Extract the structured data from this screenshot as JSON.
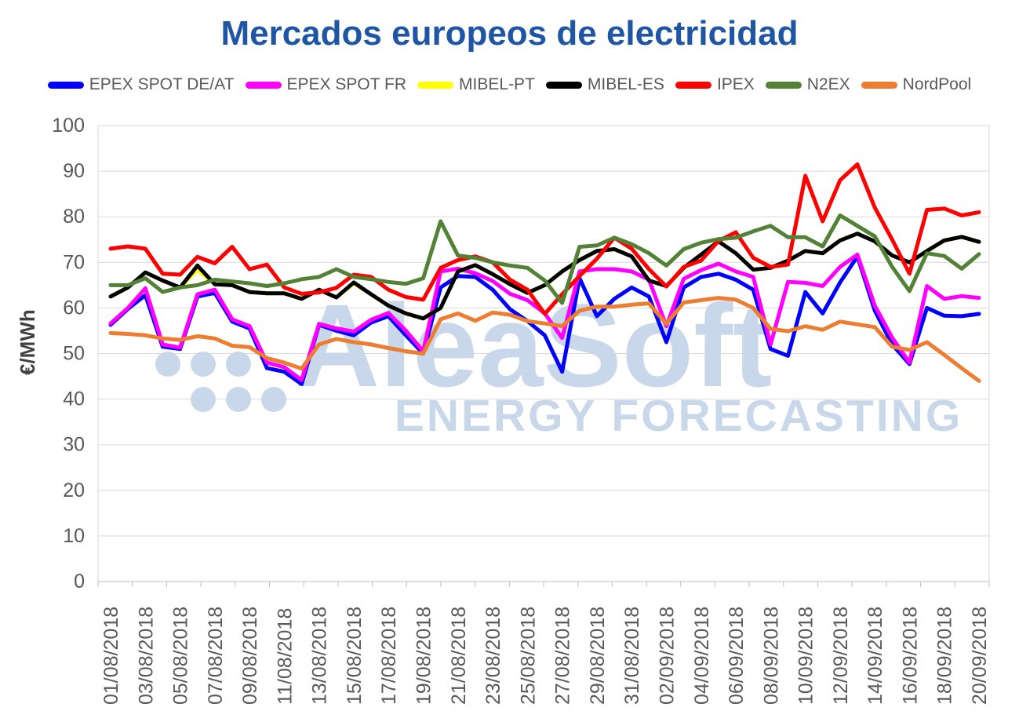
{
  "title": "Mercados europeos de electricidad",
  "watermark": {
    "brand": "AleaSoft",
    "tagline": "ENERGY FORECASTING",
    "color": "#C9D7EB"
  },
  "colors": {
    "title": "#1E56A5",
    "axis_text": "#595959",
    "y_label_text": "#404040",
    "gridline": "#D9D9D9",
    "axis_line": "#BFBFBF"
  },
  "chart_data": {
    "type": "line",
    "title": "Mercados europeos de electricidad",
    "xlabel": "",
    "ylabel": "€/MWh",
    "ylim": [
      0,
      100
    ],
    "y_ticks": [
      0,
      10,
      20,
      30,
      40,
      50,
      60,
      70,
      80,
      90,
      100
    ],
    "grid": true,
    "legend_position": "top",
    "x_labels": [
      "01/08/2018",
      "03/08/2018",
      "05/08/2018",
      "07/08/2018",
      "09/08/2018",
      "11/08/2018",
      "13/08/2018",
      "15/08/2018",
      "17/08/2018",
      "19/08/2018",
      "21/08/2018",
      "23/08/2018",
      "25/08/2018",
      "27/08/2018",
      "29/08/2018",
      "31/08/2018",
      "02/09/2018",
      "04/09/2018",
      "06/09/2018",
      "08/09/2018",
      "10/09/2018",
      "12/09/2018",
      "14/09/2018",
      "16/09/2018",
      "18/09/2018",
      "20/09/2018"
    ],
    "series": [
      {
        "name": "EPEX SPOT DE/AT",
        "color": "#0000FF",
        "values": [
          56.3,
          59.8,
          62.8,
          51.5,
          51.0,
          62.5,
          63.3,
          57.0,
          55.5,
          46.8,
          46.0,
          43.3,
          56.3,
          55.0,
          54.0,
          56.8,
          58.2,
          54.0,
          50.0,
          64.5,
          67.0,
          66.8,
          64.0,
          59.7,
          57.1,
          54.0,
          46.0,
          66.5,
          58.2,
          62.0,
          64.5,
          62.5,
          52.5,
          64.5,
          66.8,
          67.5,
          66.2,
          64.0,
          51.0,
          49.5,
          63.5,
          58.8,
          65.6,
          71.3,
          59.4,
          52.0,
          47.7,
          60.0,
          58.3,
          58.2,
          58.7
        ]
      },
      {
        "name": "EPEX SPOT FR",
        "color": "#FF00FF",
        "values": [
          56.6,
          60.0,
          64.3,
          52.0,
          51.3,
          63.0,
          64.0,
          57.5,
          56.0,
          48.0,
          47.0,
          44.2,
          56.5,
          55.5,
          54.8,
          57.4,
          58.9,
          55.0,
          50.5,
          68.0,
          68.6,
          67.6,
          65.9,
          63.1,
          61.7,
          58.8,
          53.4,
          68.0,
          68.5,
          68.5,
          68.0,
          66.2,
          56.0,
          66.4,
          68.3,
          69.7,
          68.0,
          66.8,
          52.0,
          65.7,
          65.5,
          64.8,
          69.0,
          71.7,
          60.5,
          53.5,
          48.0,
          64.8,
          62.0,
          62.6,
          62.2
        ]
      },
      {
        "name": "MIBEL-PT",
        "color": "#FFFF00",
        "values": [
          62.5,
          64.5,
          67.8,
          66.0,
          64.5,
          68.4,
          65.2,
          65.0,
          63.5,
          63.2,
          63.2,
          62.0,
          64.0,
          62.3,
          65.4,
          63.0,
          60.5,
          58.8,
          57.7,
          60.0,
          68.0,
          69.4,
          67.4,
          65.2,
          63.3,
          65.0,
          68.0,
          70.5,
          72.5,
          72.9,
          71.3,
          66.0,
          64.8,
          68.8,
          71.7,
          74.6,
          72.0,
          68.4,
          68.8,
          70.4,
          72.5,
          72.0,
          74.8,
          76.3,
          74.6,
          71.5,
          70.0,
          72.5,
          74.8,
          75.6,
          74.5
        ]
      },
      {
        "name": "MIBEL-ES",
        "color": "#000000",
        "values": [
          62.5,
          64.5,
          67.8,
          66.0,
          64.5,
          69.3,
          65.2,
          65.0,
          63.5,
          63.2,
          63.2,
          62.0,
          64.0,
          62.3,
          65.6,
          63.0,
          60.5,
          58.8,
          57.7,
          60.0,
          68.0,
          69.4,
          67.4,
          65.2,
          63.3,
          65.0,
          68.0,
          70.5,
          72.5,
          72.9,
          71.3,
          66.0,
          64.8,
          68.8,
          71.7,
          74.6,
          72.0,
          68.4,
          68.8,
          70.4,
          72.5,
          72.0,
          74.8,
          76.3,
          74.6,
          71.5,
          70.0,
          72.5,
          74.8,
          75.6,
          74.5
        ]
      },
      {
        "name": "IPEX",
        "color": "#FF0000",
        "values": [
          73.0,
          73.5,
          73.0,
          67.5,
          67.3,
          71.2,
          69.8,
          73.4,
          68.5,
          69.5,
          64.5,
          63.1,
          63.4,
          64.4,
          67.3,
          66.8,
          64.0,
          62.4,
          61.8,
          68.8,
          70.5,
          71.3,
          70.0,
          66.2,
          64.0,
          58.7,
          63.0,
          67.0,
          70.8,
          75.4,
          73.0,
          68.5,
          64.7,
          69.0,
          70.4,
          74.7,
          76.6,
          71.0,
          69.0,
          69.5,
          89.0,
          79.0,
          88.0,
          91.5,
          82.0,
          75.0,
          67.5,
          81.5,
          81.8,
          80.3,
          81.0
        ]
      },
      {
        "name": "N2EX",
        "color": "#538135",
        "values": [
          65.0,
          65.0,
          66.5,
          63.5,
          64.5,
          65.0,
          66.2,
          65.8,
          65.4,
          64.8,
          65.4,
          66.3,
          66.8,
          68.5,
          66.8,
          66.3,
          65.7,
          65.3,
          66.5,
          79.0,
          71.5,
          71.0,
          70.0,
          69.3,
          68.8,
          66.0,
          61.1,
          73.4,
          73.7,
          75.4,
          74.0,
          72.0,
          69.3,
          72.9,
          74.3,
          75.1,
          75.4,
          76.8,
          78.0,
          75.5,
          75.5,
          73.5,
          80.3,
          78.0,
          75.7,
          69.0,
          63.7,
          72.0,
          71.4,
          68.6,
          71.8
        ]
      },
      {
        "name": "NordPool",
        "color": "#ED7D31",
        "values": [
          54.5,
          54.3,
          54.0,
          53.3,
          53.0,
          53.8,
          53.3,
          51.7,
          51.4,
          49.0,
          48.0,
          46.7,
          52.0,
          53.2,
          52.5,
          52.0,
          51.2,
          50.5,
          50.0,
          57.5,
          58.8,
          57.2,
          59.0,
          58.5,
          57.1,
          56.6,
          56.0,
          59.4,
          60.3,
          60.3,
          60.7,
          61.0,
          56.5,
          61.2,
          61.7,
          62.2,
          61.8,
          60.0,
          55.4,
          54.9,
          56.0,
          55.2,
          57.0,
          56.4,
          55.8,
          51.5,
          50.8,
          52.5,
          49.7,
          46.8,
          44.0
        ]
      }
    ]
  }
}
